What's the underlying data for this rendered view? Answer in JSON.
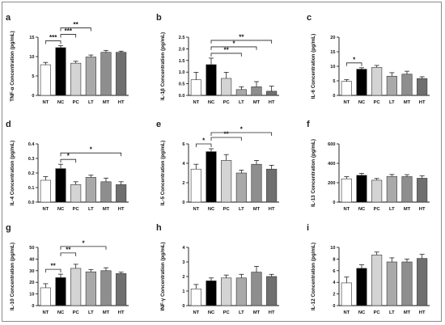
{
  "colors": {
    "NT": "#ffffff",
    "NC": "#000000",
    "PC": "#d4d4d4",
    "LT": "#a9a9a9",
    "MT": "#8e8e8e",
    "HT": "#6f6f6f"
  },
  "chart_data": [
    {
      "type": "bar",
      "panel_label": "a",
      "categories": [
        "NT",
        "NC",
        "PC",
        "LT",
        "MT",
        "HT"
      ],
      "values": [
        7.9,
        12.3,
        8.3,
        9.9,
        11.1,
        11.1
      ],
      "errors": [
        0.6,
        0.5,
        0.5,
        0.5,
        0.5,
        0.3
      ],
      "ylabel": "TNF-α Concentration (pg/mL)",
      "ylim": [
        0,
        15
      ],
      "yticks": [
        "0",
        "5",
        "10",
        "15"
      ],
      "significance": [
        {
          "from": 0,
          "to": 1,
          "label": "***"
        },
        {
          "from": 1,
          "to": 2,
          "label": "***"
        },
        {
          "from": 1,
          "to": 3,
          "label": "**"
        }
      ]
    },
    {
      "type": "bar",
      "panel_label": "b",
      "categories": [
        "NT",
        "NC",
        "PC",
        "LT",
        "MT",
        "HT"
      ],
      "values": [
        0.67,
        1.32,
        0.73,
        0.25,
        0.37,
        0.18
      ],
      "errors": [
        0.32,
        0.28,
        0.26,
        0.12,
        0.22,
        0.22
      ],
      "ylabel": "IL-1β Concentration (pg/mL)",
      "ylim": [
        0,
        2.5
      ],
      "yticks": [
        "0.0",
        "0.5",
        "1.0",
        "1.5",
        "2.0",
        "2.5"
      ],
      "significance": [
        {
          "from": 1,
          "to": 3,
          "label": "**"
        },
        {
          "from": 1,
          "to": 4,
          "label": "*"
        },
        {
          "from": 1,
          "to": 5,
          "label": "**"
        }
      ]
    },
    {
      "type": "bar",
      "panel_label": "c",
      "categories": [
        "NT",
        "NC",
        "PC",
        "LT",
        "MT",
        "HT"
      ],
      "values": [
        4.8,
        9.0,
        9.6,
        6.6,
        7.3,
        5.8
      ],
      "errors": [
        0.6,
        0.5,
        0.7,
        1.2,
        1.0,
        0.6
      ],
      "ylabel": "IL-6 Concentration (pg/mL)",
      "ylim": [
        0,
        20
      ],
      "yticks": [
        "0",
        "5",
        "10",
        "15",
        "20"
      ],
      "significance": [
        {
          "from": 0,
          "to": 1,
          "label": "*"
        }
      ]
    },
    {
      "type": "bar",
      "panel_label": "d",
      "categories": [
        "NT",
        "NC",
        "PC",
        "LT",
        "MT",
        "HT"
      ],
      "values": [
        0.15,
        0.23,
        0.12,
        0.17,
        0.14,
        0.12
      ],
      "errors": [
        0.025,
        0.03,
        0.02,
        0.015,
        0.025,
        0.02
      ],
      "ylabel": "IL-4 Concentration (pg/mL)",
      "ylim": [
        0,
        0.4
      ],
      "yticks": [
        "0.0",
        "0.1",
        "0.2",
        "0.3",
        "0.4"
      ],
      "significance": [
        {
          "from": 1,
          "to": 2,
          "label": "*"
        },
        {
          "from": 1,
          "to": 5,
          "label": "*"
        }
      ]
    },
    {
      "type": "bar",
      "panel_label": "e",
      "categories": [
        "NT",
        "NC",
        "PC",
        "LT",
        "MT",
        "HT"
      ],
      "values": [
        3.4,
        5.2,
        4.3,
        3.0,
        3.9,
        3.4
      ],
      "errors": [
        0.5,
        0.3,
        0.6,
        0.3,
        0.4,
        0.4
      ],
      "ylabel": "IL-5 Concentration (pg/mL)",
      "ylim": [
        0,
        6
      ],
      "yticks": [
        "0",
        "2",
        "4",
        "6"
      ],
      "significance": [
        {
          "from": 0,
          "to": 1,
          "label": "*"
        },
        {
          "from": 1,
          "to": 3,
          "label": "**"
        },
        {
          "from": 1,
          "to": 5,
          "label": "*"
        }
      ]
    },
    {
      "type": "bar",
      "panel_label": "f",
      "categories": [
        "NT",
        "NC",
        "PC",
        "LT",
        "MT",
        "HT"
      ],
      "values": [
        240,
        276,
        226,
        265,
        263,
        246
      ],
      "errors": [
        22,
        20,
        18,
        20,
        20,
        24
      ],
      "ylabel": "IL-13 Concentration (pg/mL)",
      "ylim": [
        0,
        600
      ],
      "yticks": [
        "0",
        "200",
        "400",
        "600"
      ],
      "significance": []
    },
    {
      "type": "bar",
      "panel_label": "g",
      "categories": [
        "NT",
        "NC",
        "PC",
        "LT",
        "MT",
        "HT"
      ],
      "values": [
        15.3,
        24.0,
        32.0,
        29.0,
        30.0,
        27.5
      ],
      "errors": [
        3.5,
        3.0,
        3.5,
        2.0,
        2.5,
        1.2
      ],
      "ylabel": "IL-10 Concentration (pg/mL)",
      "ylim": [
        0,
        50
      ],
      "yticks": [
        "0",
        "10",
        "20",
        "30",
        "40",
        "50"
      ],
      "significance": [
        {
          "from": 0,
          "to": 1,
          "label": "**"
        },
        {
          "from": 1,
          "to": 2,
          "label": "**"
        },
        {
          "from": 1,
          "to": 4,
          "label": "*"
        }
      ]
    },
    {
      "type": "bar",
      "panel_label": "h",
      "categories": [
        "NT",
        "NC",
        "PC",
        "LT",
        "MT",
        "HT"
      ],
      "values": [
        1.15,
        1.7,
        1.9,
        1.9,
        2.3,
        2.0
      ],
      "errors": [
        0.3,
        0.2,
        0.2,
        0.25,
        0.4,
        0.15
      ],
      "ylabel": "INF-γ Concentration (pg/mL)",
      "ylim": [
        0,
        4
      ],
      "yticks": [
        "0",
        "1",
        "2",
        "3",
        "4"
      ],
      "significance": []
    },
    {
      "type": "bar",
      "panel_label": "i",
      "categories": [
        "NT",
        "NC",
        "PC",
        "LT",
        "MT",
        "HT"
      ],
      "values": [
        3.9,
        6.4,
        8.7,
        7.5,
        7.5,
        8.1
      ],
      "errors": [
        1.0,
        0.6,
        0.5,
        0.7,
        0.5,
        0.7
      ],
      "ylabel": "IL-12 Concentration (pg/mL)",
      "ylim": [
        0,
        10
      ],
      "yticks": [
        "0",
        "2",
        "4",
        "6",
        "8",
        "10"
      ],
      "significance": []
    }
  ]
}
